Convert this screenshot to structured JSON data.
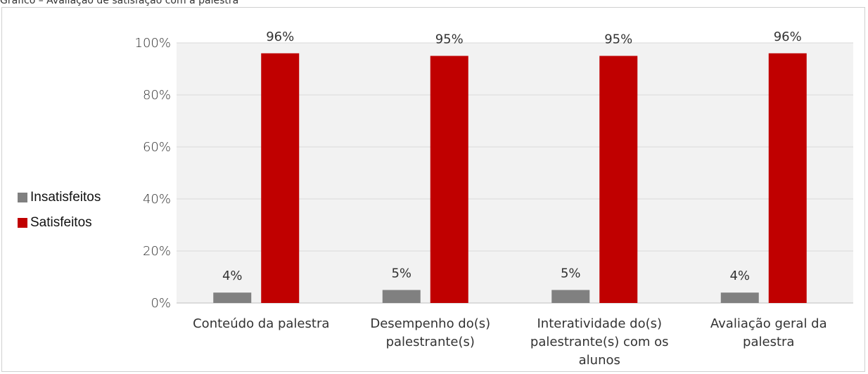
{
  "caption": "Gráfico – Avaliação de satisfação com a palestra",
  "colors": {
    "insatisfeitos": "#808080",
    "satisfeitos": "#c00000",
    "plot_bg": "#f2f2f2",
    "grid": "#d9d9d9"
  },
  "chart_data": {
    "type": "bar",
    "categories": [
      [
        "Conteúdo da palestra"
      ],
      [
        "Desempenho do(s)",
        "palestrante(s)"
      ],
      [
        "Interatividade do(s)",
        "palestrante(s) com os",
        "alunos"
      ],
      [
        "Avaliação geral da",
        "palestra"
      ]
    ],
    "series": [
      {
        "name": "Insatisfeitos",
        "values": [
          4,
          5,
          5,
          4
        ],
        "labels": [
          "4%",
          "5%",
          "5%",
          "4%"
        ]
      },
      {
        "name": "Satisfeitos",
        "values": [
          96,
          95,
          95,
          96
        ],
        "labels": [
          "96%",
          "95%",
          "95%",
          "96%"
        ]
      }
    ],
    "yticks": [
      "0%",
      "20%",
      "40%",
      "60%",
      "80%",
      "100%"
    ],
    "ylim": [
      0,
      100
    ],
    "legend": "left",
    "grid": true
  }
}
